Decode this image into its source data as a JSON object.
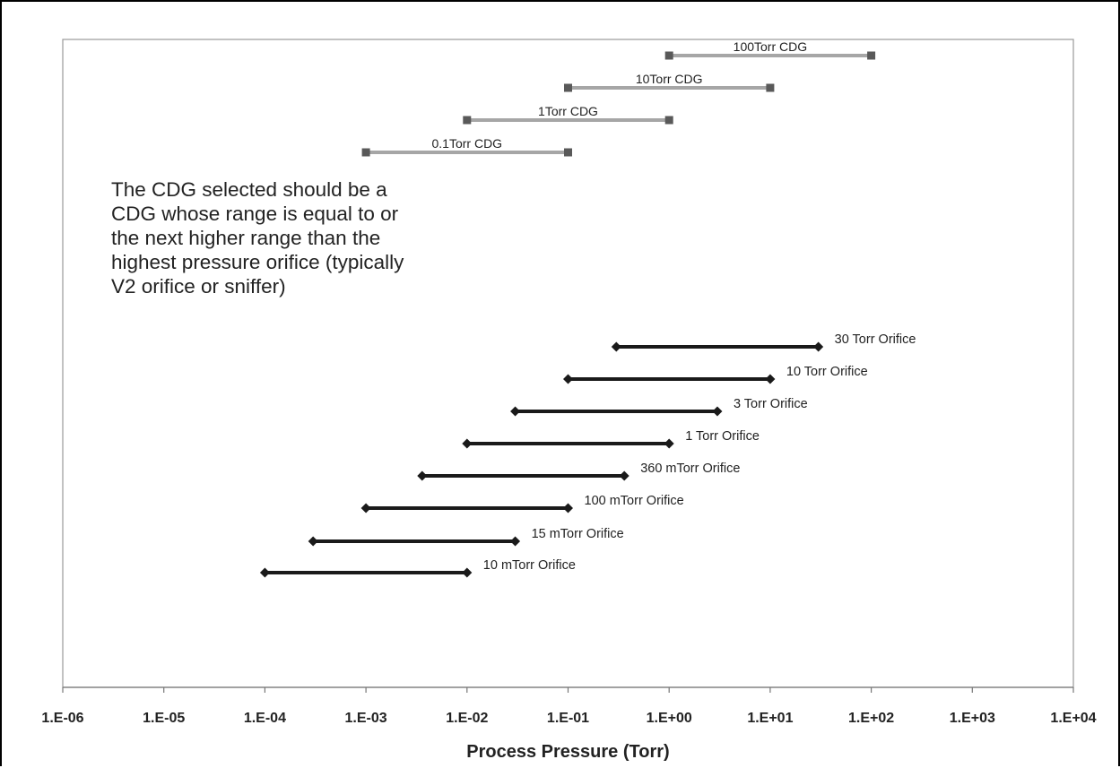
{
  "chart_data": {
    "type": "range",
    "title": "",
    "xlabel": "Process Pressure (Torr)",
    "ylabel": "",
    "xscale": "log",
    "xlim": [
      1e-06,
      10000.0
    ],
    "grid": false,
    "x_tick_labels": [
      "1.E-06",
      "1.E-05",
      "1.E-04",
      "1.E-03",
      "1.E-02",
      "1.E-01",
      "1.E+00",
      "1.E+01",
      "1.E+02",
      "1.E+03",
      "1.E+04"
    ],
    "annotation": "The CDG selected should be a\nCDG whose range is equal to or\nthe next higher range than the\nhighest pressure orifice (typically\nV2 orifice or sniffer)",
    "cdg_ranges": [
      {
        "label": "100Torr CDG",
        "min": 1,
        "max": 100,
        "color": "#a6a6a6",
        "marker": "square",
        "marker_color": "#595959"
      },
      {
        "label": "10Torr CDG",
        "min": 0.1,
        "max": 10,
        "color": "#a6a6a6",
        "marker": "square",
        "marker_color": "#595959"
      },
      {
        "label": "1Torr CDG",
        "min": 0.01,
        "max": 1,
        "color": "#a6a6a6",
        "marker": "square",
        "marker_color": "#595959"
      },
      {
        "label": "0.1Torr CDG",
        "min": 0.001,
        "max": 0.1,
        "color": "#a6a6a6",
        "marker": "square",
        "marker_color": "#595959"
      }
    ],
    "orifice_ranges": [
      {
        "label": "30 Torr Orifice",
        "min": 0.3,
        "max": 30,
        "color": "#1a1a1a",
        "marker": "diamond"
      },
      {
        "label": "10 Torr Orifice",
        "min": 0.1,
        "max": 10,
        "color": "#1a1a1a",
        "marker": "diamond"
      },
      {
        "label": "3 Torr Orifice",
        "min": 0.03,
        "max": 3,
        "color": "#1a1a1a",
        "marker": "diamond"
      },
      {
        "label": "1 Torr Orifice",
        "min": 0.01,
        "max": 1,
        "color": "#1a1a1a",
        "marker": "diamond"
      },
      {
        "label": "360 mTorr Orifice",
        "min": 0.0036,
        "max": 0.36,
        "color": "#1a1a1a",
        "marker": "diamond"
      },
      {
        "label": "100 mTorr Orifice",
        "min": 0.001,
        "max": 0.1,
        "color": "#1a1a1a",
        "marker": "diamond"
      },
      {
        "label": "15 mTorr Orifice",
        "min": 0.0003,
        "max": 0.03,
        "color": "#1a1a1a",
        "marker": "diamond"
      },
      {
        "label": "10 mTorr Orifice",
        "min": 0.0001,
        "max": 0.01,
        "color": "#1a1a1a",
        "marker": "diamond"
      }
    ]
  }
}
